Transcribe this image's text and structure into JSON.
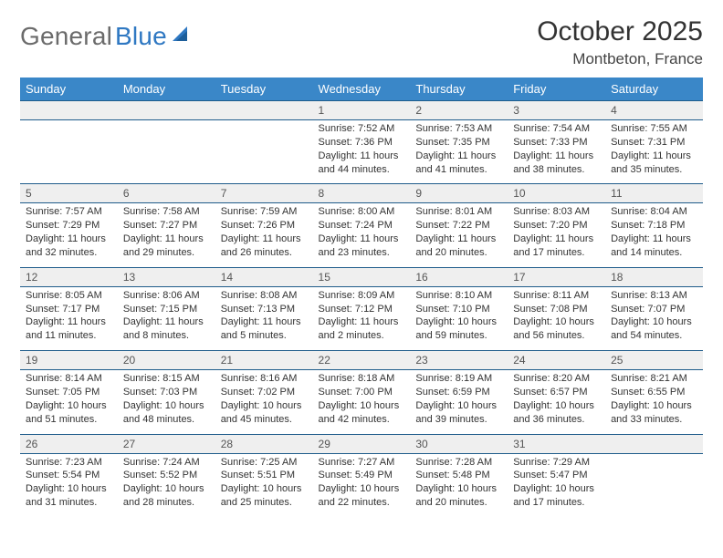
{
  "brand": {
    "word1": "General",
    "word2": "Blue",
    "logo_color": "#2f78c2"
  },
  "title": {
    "month": "October 2025",
    "location": "Montbeton, France"
  },
  "colors": {
    "header_bg": "#3a87c8",
    "header_text": "#ffffff",
    "daynum_bg": "#efefef",
    "row_border": "#1f5c8b",
    "body_text": "#333333",
    "page_bg": "#ffffff"
  },
  "typography": {
    "title_fontsize": 30,
    "location_fontsize": 17,
    "dayheader_fontsize": 13,
    "daynum_fontsize": 12,
    "detail_fontsize": 11
  },
  "day_headers": [
    "Sunday",
    "Monday",
    "Tuesday",
    "Wednesday",
    "Thursday",
    "Friday",
    "Saturday"
  ],
  "weeks": [
    [
      {
        "n": "",
        "sunrise": "",
        "sunset": "",
        "day": ""
      },
      {
        "n": "",
        "sunrise": "",
        "sunset": "",
        "day": ""
      },
      {
        "n": "",
        "sunrise": "",
        "sunset": "",
        "day": ""
      },
      {
        "n": "1",
        "sunrise": "Sunrise: 7:52 AM",
        "sunset": "Sunset: 7:36 PM",
        "day": "Daylight: 11 hours and 44 minutes."
      },
      {
        "n": "2",
        "sunrise": "Sunrise: 7:53 AM",
        "sunset": "Sunset: 7:35 PM",
        "day": "Daylight: 11 hours and 41 minutes."
      },
      {
        "n": "3",
        "sunrise": "Sunrise: 7:54 AM",
        "sunset": "Sunset: 7:33 PM",
        "day": "Daylight: 11 hours and 38 minutes."
      },
      {
        "n": "4",
        "sunrise": "Sunrise: 7:55 AM",
        "sunset": "Sunset: 7:31 PM",
        "day": "Daylight: 11 hours and 35 minutes."
      }
    ],
    [
      {
        "n": "5",
        "sunrise": "Sunrise: 7:57 AM",
        "sunset": "Sunset: 7:29 PM",
        "day": "Daylight: 11 hours and 32 minutes."
      },
      {
        "n": "6",
        "sunrise": "Sunrise: 7:58 AM",
        "sunset": "Sunset: 7:27 PM",
        "day": "Daylight: 11 hours and 29 minutes."
      },
      {
        "n": "7",
        "sunrise": "Sunrise: 7:59 AM",
        "sunset": "Sunset: 7:26 PM",
        "day": "Daylight: 11 hours and 26 minutes."
      },
      {
        "n": "8",
        "sunrise": "Sunrise: 8:00 AM",
        "sunset": "Sunset: 7:24 PM",
        "day": "Daylight: 11 hours and 23 minutes."
      },
      {
        "n": "9",
        "sunrise": "Sunrise: 8:01 AM",
        "sunset": "Sunset: 7:22 PM",
        "day": "Daylight: 11 hours and 20 minutes."
      },
      {
        "n": "10",
        "sunrise": "Sunrise: 8:03 AM",
        "sunset": "Sunset: 7:20 PM",
        "day": "Daylight: 11 hours and 17 minutes."
      },
      {
        "n": "11",
        "sunrise": "Sunrise: 8:04 AM",
        "sunset": "Sunset: 7:18 PM",
        "day": "Daylight: 11 hours and 14 minutes."
      }
    ],
    [
      {
        "n": "12",
        "sunrise": "Sunrise: 8:05 AM",
        "sunset": "Sunset: 7:17 PM",
        "day": "Daylight: 11 hours and 11 minutes."
      },
      {
        "n": "13",
        "sunrise": "Sunrise: 8:06 AM",
        "sunset": "Sunset: 7:15 PM",
        "day": "Daylight: 11 hours and 8 minutes."
      },
      {
        "n": "14",
        "sunrise": "Sunrise: 8:08 AM",
        "sunset": "Sunset: 7:13 PM",
        "day": "Daylight: 11 hours and 5 minutes."
      },
      {
        "n": "15",
        "sunrise": "Sunrise: 8:09 AM",
        "sunset": "Sunset: 7:12 PM",
        "day": "Daylight: 11 hours and 2 minutes."
      },
      {
        "n": "16",
        "sunrise": "Sunrise: 8:10 AM",
        "sunset": "Sunset: 7:10 PM",
        "day": "Daylight: 10 hours and 59 minutes."
      },
      {
        "n": "17",
        "sunrise": "Sunrise: 8:11 AM",
        "sunset": "Sunset: 7:08 PM",
        "day": "Daylight: 10 hours and 56 minutes."
      },
      {
        "n": "18",
        "sunrise": "Sunrise: 8:13 AM",
        "sunset": "Sunset: 7:07 PM",
        "day": "Daylight: 10 hours and 54 minutes."
      }
    ],
    [
      {
        "n": "19",
        "sunrise": "Sunrise: 8:14 AM",
        "sunset": "Sunset: 7:05 PM",
        "day": "Daylight: 10 hours and 51 minutes."
      },
      {
        "n": "20",
        "sunrise": "Sunrise: 8:15 AM",
        "sunset": "Sunset: 7:03 PM",
        "day": "Daylight: 10 hours and 48 minutes."
      },
      {
        "n": "21",
        "sunrise": "Sunrise: 8:16 AM",
        "sunset": "Sunset: 7:02 PM",
        "day": "Daylight: 10 hours and 45 minutes."
      },
      {
        "n": "22",
        "sunrise": "Sunrise: 8:18 AM",
        "sunset": "Sunset: 7:00 PM",
        "day": "Daylight: 10 hours and 42 minutes."
      },
      {
        "n": "23",
        "sunrise": "Sunrise: 8:19 AM",
        "sunset": "Sunset: 6:59 PM",
        "day": "Daylight: 10 hours and 39 minutes."
      },
      {
        "n": "24",
        "sunrise": "Sunrise: 8:20 AM",
        "sunset": "Sunset: 6:57 PM",
        "day": "Daylight: 10 hours and 36 minutes."
      },
      {
        "n": "25",
        "sunrise": "Sunrise: 8:21 AM",
        "sunset": "Sunset: 6:55 PM",
        "day": "Daylight: 10 hours and 33 minutes."
      }
    ],
    [
      {
        "n": "26",
        "sunrise": "Sunrise: 7:23 AM",
        "sunset": "Sunset: 5:54 PM",
        "day": "Daylight: 10 hours and 31 minutes."
      },
      {
        "n": "27",
        "sunrise": "Sunrise: 7:24 AM",
        "sunset": "Sunset: 5:52 PM",
        "day": "Daylight: 10 hours and 28 minutes."
      },
      {
        "n": "28",
        "sunrise": "Sunrise: 7:25 AM",
        "sunset": "Sunset: 5:51 PM",
        "day": "Daylight: 10 hours and 25 minutes."
      },
      {
        "n": "29",
        "sunrise": "Sunrise: 7:27 AM",
        "sunset": "Sunset: 5:49 PM",
        "day": "Daylight: 10 hours and 22 minutes."
      },
      {
        "n": "30",
        "sunrise": "Sunrise: 7:28 AM",
        "sunset": "Sunset: 5:48 PM",
        "day": "Daylight: 10 hours and 20 minutes."
      },
      {
        "n": "31",
        "sunrise": "Sunrise: 7:29 AM",
        "sunset": "Sunset: 5:47 PM",
        "day": "Daylight: 10 hours and 17 minutes."
      },
      {
        "n": "",
        "sunrise": "",
        "sunset": "",
        "day": ""
      }
    ]
  ]
}
